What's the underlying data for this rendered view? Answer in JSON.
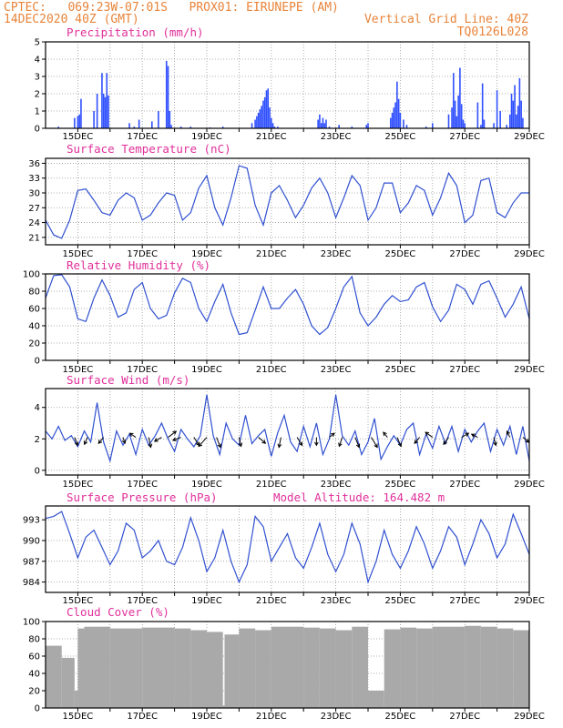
{
  "header": {
    "line1_left": "CPTEC:   069:23W-07:01S   PROX01: EIRUNEPE (AM)",
    "line2_left": "14DEC2020 40Z (GMT)",
    "line2_right": "Vertical Grid Line: 40Z",
    "line3_right": "TQ0126L028"
  },
  "chart_data": [
    {
      "type": "bar",
      "title": "Precipitation (mm/h)",
      "x_ticks": [
        "15DEC",
        "17DEC",
        "19DEC",
        "21DEC",
        "23DEC",
        "25DEC",
        "27DEC",
        "29DEC"
      ],
      "xlim_days": [
        14,
        29
      ],
      "ylim": [
        0,
        5
      ],
      "y_ticks": [
        0,
        1,
        2,
        3,
        4,
        5
      ],
      "color": "#3050ff",
      "x": [
        14.4,
        14.9,
        15.0,
        15.05,
        15.1,
        15.5,
        15.6,
        15.75,
        15.8,
        15.85,
        15.9,
        15.95,
        16.6,
        16.75,
        16.9,
        17.3,
        17.5,
        17.75,
        17.8,
        17.85,
        17.9,
        18.2,
        18.5,
        19.1,
        19.5,
        20.4,
        20.5,
        20.55,
        20.6,
        20.65,
        20.7,
        20.75,
        20.8,
        20.85,
        20.9,
        20.95,
        21.0,
        21.05,
        21.1,
        21.2,
        22.45,
        22.5,
        22.55,
        22.6,
        22.65,
        22.7,
        22.8,
        23.1,
        23.5,
        23.95,
        24.0,
        24.7,
        24.75,
        24.8,
        24.85,
        24.9,
        24.95,
        25.0,
        25.1,
        25.2,
        25.8,
        26.0,
        26.5,
        26.6,
        26.65,
        26.7,
        26.75,
        26.8,
        26.85,
        26.9,
        26.95,
        27.0,
        27.4,
        27.5,
        27.55,
        27.6,
        27.9,
        28.0,
        28.1,
        28.3,
        28.4,
        28.45,
        28.5,
        28.55,
        28.6,
        28.65,
        28.7,
        28.75,
        28.8
      ],
      "values": [
        0.1,
        0.6,
        0.7,
        0.8,
        1.7,
        1.0,
        2.0,
        3.2,
        2.0,
        1.8,
        3.2,
        1.9,
        0.3,
        0.1,
        0.5,
        0.4,
        1.0,
        3.9,
        3.6,
        1.0,
        0.2,
        0.1,
        0.1,
        0.05,
        0.1,
        0.3,
        0.5,
        0.7,
        0.9,
        1.1,
        1.3,
        1.6,
        1.8,
        2.2,
        2.3,
        1.2,
        0.6,
        0.3,
        0.1,
        0.1,
        0.5,
        0.8,
        0.3,
        0.6,
        0.3,
        0.5,
        0.1,
        0.2,
        0.1,
        0.2,
        0.3,
        0.6,
        0.9,
        1.2,
        1.5,
        2.7,
        1.7,
        0.9,
        0.5,
        0.2,
        0.1,
        0.3,
        0.8,
        1.2,
        3.2,
        1.6,
        0.7,
        1.9,
        3.5,
        1.4,
        0.5,
        0.3,
        1.5,
        0.2,
        2.6,
        0.5,
        0.3,
        2.2,
        1.0,
        0.2,
        0.8,
        2.0,
        1.6,
        2.5,
        0.8,
        1.3,
        2.9,
        1.6,
        0.6
      ]
    },
    {
      "type": "line",
      "title": "Surface Temperature (nC)",
      "x_ticks": [
        "15DEC",
        "17DEC",
        "19DEC",
        "21DEC",
        "23DEC",
        "25DEC",
        "27DEC",
        "29DEC"
      ],
      "xlim_days": [
        14,
        29
      ],
      "ylim": [
        19.5,
        37
      ],
      "y_ticks": [
        21,
        24,
        27,
        30,
        33,
        36
      ],
      "color": "#3050d0",
      "x": [
        14.0,
        14.25,
        14.5,
        14.75,
        15.0,
        15.25,
        15.5,
        15.75,
        16.0,
        16.25,
        16.5,
        16.75,
        17.0,
        17.25,
        17.5,
        17.75,
        18.0,
        18.25,
        18.5,
        18.75,
        19.0,
        19.25,
        19.5,
        19.75,
        20.0,
        20.25,
        20.5,
        20.75,
        21.0,
        21.25,
        21.5,
        21.75,
        22.0,
        22.25,
        22.5,
        22.75,
        23.0,
        23.25,
        23.5,
        23.75,
        24.0,
        24.25,
        24.5,
        24.75,
        25.0,
        25.25,
        25.5,
        25.75,
        26.0,
        26.25,
        26.5,
        26.75,
        27.0,
        27.25,
        27.5,
        27.75,
        28.0,
        28.25,
        28.5,
        28.75,
        29.0
      ],
      "values": [
        24.5,
        21.5,
        20.8,
        24.5,
        30.5,
        30.8,
        28.5,
        26.0,
        25.5,
        28.5,
        30.0,
        29.0,
        24.5,
        25.5,
        28.0,
        30.0,
        29.5,
        24.5,
        26.0,
        31.0,
        33.5,
        27.0,
        23.5,
        29.0,
        35.5,
        35.0,
        27.5,
        23.5,
        30.0,
        31.5,
        28.5,
        25.0,
        27.5,
        31.0,
        33.0,
        30.0,
        25.0,
        29.0,
        33.5,
        31.5,
        24.5,
        27.0,
        32.0,
        32.0,
        26.0,
        28.0,
        31.5,
        30.5,
        25.5,
        29.0,
        34.0,
        31.5,
        24.0,
        25.5,
        32.5,
        33.0,
        26.0,
        25.0,
        28.0,
        30.0,
        30.0
      ]
    },
    {
      "type": "line",
      "title": "Relative Humidity (%)",
      "x_ticks": [
        "15DEC",
        "17DEC",
        "19DEC",
        "21DEC",
        "23DEC",
        "25DEC",
        "27DEC",
        "29DEC"
      ],
      "xlim_days": [
        14,
        29
      ],
      "ylim": [
        0,
        100
      ],
      "y_ticks": [
        0,
        20,
        40,
        60,
        80,
        100
      ],
      "color": "#3050d0",
      "x": [
        14.0,
        14.25,
        14.5,
        14.75,
        15.0,
        15.25,
        15.5,
        15.75,
        16.0,
        16.25,
        16.5,
        16.75,
        17.0,
        17.25,
        17.5,
        17.75,
        18.0,
        18.25,
        18.5,
        18.75,
        19.0,
        19.25,
        19.5,
        19.75,
        20.0,
        20.25,
        20.5,
        20.75,
        21.0,
        21.25,
        21.5,
        21.75,
        22.0,
        22.25,
        22.5,
        22.75,
        23.0,
        23.25,
        23.5,
        23.75,
        24.0,
        24.25,
        24.5,
        24.75,
        25.0,
        25.25,
        25.5,
        25.75,
        26.0,
        26.25,
        26.5,
        26.75,
        27.0,
        27.25,
        27.5,
        27.75,
        28.0,
        28.25,
        28.5,
        28.75,
        29.0
      ],
      "values": [
        72,
        98,
        99,
        85,
        48,
        45,
        72,
        93,
        75,
        50,
        55,
        82,
        90,
        60,
        48,
        52,
        78,
        95,
        90,
        60,
        45,
        68,
        88,
        55,
        30,
        32,
        58,
        85,
        60,
        60,
        72,
        82,
        65,
        40,
        30,
        38,
        60,
        85,
        97,
        55,
        40,
        50,
        65,
        75,
        68,
        70,
        85,
        90,
        62,
        45,
        58,
        88,
        82,
        65,
        88,
        92,
        72,
        50,
        65,
        85,
        48
      ]
    },
    {
      "type": "line",
      "title": "Surface Wind (m/s)",
      "x_ticks": [
        "15DEC",
        "17DEC",
        "19DEC",
        "21DEC",
        "23DEC",
        "25DEC",
        "27DEC",
        "29DEC"
      ],
      "xlim_days": [
        14,
        29
      ],
      "ylim": [
        -0.3,
        5.2
      ],
      "y_ticks": [
        0,
        2,
        4
      ],
      "color": "#3050d0",
      "x": [
        14.0,
        14.2,
        14.4,
        14.6,
        14.8,
        15.0,
        15.2,
        15.4,
        15.6,
        15.8,
        16.0,
        16.2,
        16.4,
        16.6,
        16.8,
        17.0,
        17.2,
        17.4,
        17.6,
        17.8,
        18.0,
        18.2,
        18.4,
        18.6,
        18.8,
        19.0,
        19.2,
        19.4,
        19.6,
        19.8,
        20.0,
        20.2,
        20.4,
        20.6,
        20.8,
        21.0,
        21.2,
        21.4,
        21.6,
        21.8,
        22.0,
        22.2,
        22.4,
        22.6,
        22.8,
        23.0,
        23.2,
        23.4,
        23.6,
        23.8,
        24.0,
        24.2,
        24.4,
        24.6,
        24.8,
        25.0,
        25.2,
        25.4,
        25.6,
        25.8,
        26.0,
        26.2,
        26.4,
        26.6,
        26.8,
        27.0,
        27.2,
        27.4,
        27.6,
        27.8,
        28.0,
        28.2,
        28.4,
        28.6,
        28.8,
        29.0
      ],
      "values": [
        2.5,
        2.0,
        2.8,
        1.9,
        2.2,
        1.5,
        2.5,
        1.8,
        4.3,
        1.8,
        0.6,
        2.5,
        1.6,
        2.3,
        1.0,
        2.6,
        1.6,
        2.2,
        3.0,
        2.0,
        1.2,
        2.6,
        2.0,
        1.5,
        2.2,
        4.8,
        2.2,
        1.0,
        3.0,
        2.0,
        1.6,
        3.5,
        1.7,
        2.2,
        2.6,
        0.9,
        2.4,
        3.5,
        1.8,
        1.2,
        2.8,
        1.5,
        3.0,
        1.0,
        2.0,
        4.8,
        2.2,
        1.6,
        2.5,
        1.0,
        1.8,
        3.3,
        0.7,
        1.5,
        2.2,
        1.6,
        2.6,
        3.0,
        1.0,
        2.3,
        1.4,
        2.8,
        1.7,
        2.8,
        1.2,
        2.6,
        1.8,
        2.5,
        3.0,
        1.2,
        2.6,
        1.6,
        2.8,
        1.0,
        2.8,
        0.6
      ],
      "vectors": [
        {
          "x": 14.9,
          "dx": 0.3,
          "dy": 0.8
        },
        {
          "x": 15.3,
          "dx": -0.3,
          "dy": 0.7
        },
        {
          "x": 15.8,
          "dx": -0.5,
          "dy": 0.6
        },
        {
          "x": 16.4,
          "dx": 0.2,
          "dy": 0.6
        },
        {
          "x": 16.8,
          "dx": -0.6,
          "dy": -0.4
        },
        {
          "x": 17.2,
          "dx": 0.2,
          "dy": 1.0
        },
        {
          "x": 17.6,
          "dx": -0.7,
          "dy": 0.4
        },
        {
          "x": 17.8,
          "dx": 0.8,
          "dy": -0.6
        },
        {
          "x": 18.2,
          "dx": -0.8,
          "dy": 0.3
        },
        {
          "x": 18.6,
          "dx": 0.5,
          "dy": 0.8
        },
        {
          "x": 19.0,
          "dx": -0.8,
          "dy": 0.9
        },
        {
          "x": 19.3,
          "dx": 0.4,
          "dy": 1.0
        },
        {
          "x": 20.0,
          "dx": 0.2,
          "dy": 0.9
        },
        {
          "x": 20.6,
          "dx": 0.7,
          "dy": 0.6
        },
        {
          "x": 21.3,
          "dx": -0.2,
          "dy": 1.0
        },
        {
          "x": 21.8,
          "dx": 0.5,
          "dy": 0.8
        },
        {
          "x": 22.4,
          "dx": 0.0,
          "dy": 0.8
        },
        {
          "x": 22.8,
          "dx": 0.5,
          "dy": -0.4
        },
        {
          "x": 23.2,
          "dx": -0.3,
          "dy": 0.9
        },
        {
          "x": 23.6,
          "dx": 0.4,
          "dy": 1.0
        },
        {
          "x": 24.1,
          "dx": 0.6,
          "dy": 1.0
        },
        {
          "x": 24.6,
          "dx": -0.4,
          "dy": -0.5
        },
        {
          "x": 24.9,
          "dx": 0.4,
          "dy": 0.9
        },
        {
          "x": 25.6,
          "dx": -0.5,
          "dy": 0.6
        },
        {
          "x": 26.0,
          "dx": -0.7,
          "dy": -0.5
        },
        {
          "x": 26.5,
          "dx": -0.5,
          "dy": 0.7
        },
        {
          "x": 26.9,
          "dx": 0.7,
          "dy": -0.4
        },
        {
          "x": 27.4,
          "dx": -0.6,
          "dy": -0.3
        },
        {
          "x": 27.9,
          "dx": 0.2,
          "dy": 0.8
        },
        {
          "x": 28.4,
          "dx": -0.3,
          "dy": -0.6
        },
        {
          "x": 28.8,
          "dx": 0.6,
          "dy": 0.5
        }
      ]
    },
    {
      "type": "line",
      "title": "Surface Pressure (hPa)",
      "subtitle": "Model Altitude: 164.482  m",
      "x_ticks": [
        "15DEC",
        "17DEC",
        "19DEC",
        "21DEC",
        "23DEC",
        "25DEC",
        "27DEC",
        "29DEC"
      ],
      "xlim_days": [
        14,
        29
      ],
      "ylim": [
        982.5,
        995
      ],
      "y_ticks": [
        984,
        987,
        990,
        993
      ],
      "color": "#3050d0",
      "x": [
        14.0,
        14.25,
        14.5,
        14.75,
        15.0,
        15.25,
        15.5,
        15.75,
        16.0,
        16.25,
        16.5,
        16.75,
        17.0,
        17.25,
        17.5,
        17.75,
        18.0,
        18.25,
        18.5,
        18.75,
        19.0,
        19.25,
        19.5,
        19.75,
        20.0,
        20.25,
        20.5,
        20.75,
        21.0,
        21.25,
        21.5,
        21.75,
        22.0,
        22.25,
        22.5,
        22.75,
        23.0,
        23.25,
        23.5,
        23.75,
        24.0,
        24.25,
        24.5,
        24.75,
        25.0,
        25.25,
        25.5,
        25.75,
        26.0,
        26.25,
        26.5,
        26.75,
        27.0,
        27.25,
        27.5,
        27.75,
        28.0,
        28.25,
        28.5,
        28.75,
        29.0
      ],
      "values": [
        993.2,
        993.5,
        994.2,
        991.0,
        987.5,
        990.5,
        991.5,
        989.0,
        986.5,
        988.5,
        992.5,
        991.5,
        987.5,
        988.5,
        990.0,
        987.0,
        986.5,
        989.0,
        993.3,
        990.0,
        985.5,
        987.5,
        991.5,
        987.0,
        984.0,
        986.5,
        993.5,
        992.0,
        987.0,
        989.0,
        991.0,
        987.5,
        986.0,
        989.0,
        992.5,
        988.0,
        985.5,
        988.0,
        992.5,
        989.5,
        984.0,
        987.0,
        991.5,
        988.0,
        986.0,
        988.5,
        992.0,
        989.5,
        986.0,
        988.5,
        992.0,
        990.5,
        986.5,
        989.5,
        993.0,
        991.0,
        987.5,
        989.5,
        993.8,
        991.0,
        988.0
      ]
    },
    {
      "type": "bar",
      "title": "Cloud Cover (%)",
      "x_ticks": [
        "15DEC",
        "17DEC",
        "19DEC",
        "21DEC",
        "23DEC",
        "25DEC",
        "27DEC",
        "29DEC"
      ],
      "xlim_days": [
        14,
        29
      ],
      "ylim": [
        0,
        100
      ],
      "y_ticks": [
        0,
        20,
        40,
        60,
        80,
        100
      ],
      "color": "#a9a9a9",
      "segments_x": [
        14.0,
        14.5,
        14.9,
        15.0,
        15.2,
        16.0,
        17.0,
        18.0,
        18.5,
        19.0,
        19.5,
        19.55,
        20.0,
        20.5,
        21.0,
        22.0,
        22.5,
        23.0,
        23.5,
        24.0,
        24.5,
        25.0,
        25.5,
        26.0,
        27.0,
        27.5,
        28.0,
        28.5,
        29.0
      ],
      "values": [
        72,
        58,
        20,
        92,
        94,
        92,
        93,
        92,
        90,
        88,
        3,
        85,
        92,
        90,
        94,
        93,
        92,
        90,
        94,
        20,
        91,
        93,
        92,
        94,
        95,
        94,
        92,
        90,
        93
      ]
    }
  ]
}
